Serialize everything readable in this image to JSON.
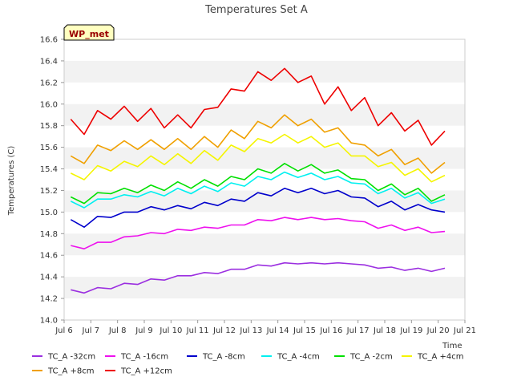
{
  "chart_data": {
    "type": "line",
    "title": "Temperatures Set A",
    "xlabel": "Time",
    "ylabel": "Temperatures (C)",
    "badge": "WP_met",
    "ylim": [
      14.0,
      16.6
    ],
    "yticks": [
      "14.0",
      "14.2",
      "14.4",
      "14.6",
      "14.8",
      "15.0",
      "15.2",
      "15.4",
      "15.6",
      "15.8",
      "16.0",
      "16.2",
      "16.4",
      "16.6"
    ],
    "xlim": [
      6,
      21
    ],
    "xticks": [
      {
        "x": 6,
        "label": "Jul 6"
      },
      {
        "x": 7,
        "label": "Jul 7"
      },
      {
        "x": 8,
        "label": "Jul 8"
      },
      {
        "x": 9,
        "label": "Jul 9"
      },
      {
        "x": 10,
        "label": "Jul 10"
      },
      {
        "x": 11,
        "label": "Jul 11"
      },
      {
        "x": 12,
        "label": "Jul 12"
      },
      {
        "x": 13,
        "label": "Jul 13"
      },
      {
        "x": 14,
        "label": "Jul 14"
      },
      {
        "x": 15,
        "label": "Jul 15"
      },
      {
        "x": 16,
        "label": "Jul 16"
      },
      {
        "x": 17,
        "label": "Jul 17"
      },
      {
        "x": 18,
        "label": "Jul 18"
      },
      {
        "x": 19,
        "label": "Jul 19"
      },
      {
        "x": 20,
        "label": "Jul 20"
      },
      {
        "x": 21,
        "label": "Jul 21"
      }
    ],
    "grid": "horizontal bands",
    "legend_position": "bottom",
    "x": [
      6.25,
      6.75,
      7.25,
      7.75,
      8.25,
      8.75,
      9.25,
      9.75,
      10.25,
      10.75,
      11.25,
      11.75,
      12.25,
      12.75,
      13.25,
      13.75,
      14.25,
      14.75,
      15.25,
      15.75,
      16.25,
      16.75,
      17.25,
      17.75,
      18.25,
      18.75,
      19.25,
      19.75,
      20.25
    ],
    "series": [
      {
        "name": "TC_A -32cm",
        "color": "#9b2fe0",
        "values": [
          14.28,
          14.25,
          14.3,
          14.29,
          14.34,
          14.33,
          14.38,
          14.37,
          14.41,
          14.41,
          14.44,
          14.43,
          14.47,
          14.47,
          14.51,
          14.5,
          14.53,
          14.52,
          14.53,
          14.52,
          14.53,
          14.52,
          14.51,
          14.48,
          14.49,
          14.46,
          14.48,
          14.45,
          14.48
        ]
      },
      {
        "name": "TC_A -16cm",
        "color": "#ee11ee",
        "values": [
          14.69,
          14.66,
          14.72,
          14.72,
          14.77,
          14.78,
          14.81,
          14.8,
          14.84,
          14.83,
          14.86,
          14.85,
          14.88,
          14.88,
          14.93,
          14.92,
          14.95,
          14.93,
          14.95,
          14.93,
          14.94,
          14.92,
          14.91,
          14.85,
          14.88,
          14.83,
          14.86,
          14.81,
          14.82
        ]
      },
      {
        "name": "TC_A -8cm",
        "color": "#0000cc",
        "values": [
          14.93,
          14.86,
          14.96,
          14.95,
          15.0,
          15.0,
          15.05,
          15.02,
          15.06,
          15.03,
          15.09,
          15.06,
          15.12,
          15.1,
          15.18,
          15.15,
          15.22,
          15.18,
          15.22,
          15.17,
          15.2,
          15.14,
          15.13,
          15.05,
          15.1,
          15.02,
          15.07,
          15.02,
          15.0
        ]
      },
      {
        "name": "TC_A -4cm",
        "color": "#00f0f0",
        "values": [
          15.1,
          15.04,
          15.12,
          15.12,
          15.16,
          15.14,
          15.19,
          15.15,
          15.22,
          15.17,
          15.24,
          15.19,
          15.27,
          15.24,
          15.33,
          15.3,
          15.37,
          15.32,
          15.36,
          15.3,
          15.33,
          15.27,
          15.26,
          15.17,
          15.22,
          15.13,
          15.18,
          15.08,
          15.12
        ]
      },
      {
        "name": "TC_A -2cm",
        "color": "#00e000",
        "values": [
          15.14,
          15.08,
          15.18,
          15.17,
          15.22,
          15.18,
          15.25,
          15.2,
          15.28,
          15.22,
          15.3,
          15.24,
          15.33,
          15.3,
          15.4,
          15.36,
          15.45,
          15.38,
          15.44,
          15.36,
          15.39,
          15.31,
          15.3,
          15.2,
          15.26,
          15.16,
          15.22,
          15.1,
          15.16
        ]
      },
      {
        "name": "TC_A +4cm",
        "color": "#f5f500",
        "values": [
          15.36,
          15.3,
          15.43,
          15.38,
          15.47,
          15.42,
          15.52,
          15.44,
          15.54,
          15.45,
          15.57,
          15.48,
          15.62,
          15.56,
          15.68,
          15.64,
          15.72,
          15.64,
          15.7,
          15.6,
          15.64,
          15.52,
          15.52,
          15.42,
          15.46,
          15.34,
          15.4,
          15.28,
          15.34
        ]
      },
      {
        "name": "TC_A +8cm",
        "color": "#f0a000",
        "values": [
          15.52,
          15.45,
          15.62,
          15.57,
          15.66,
          15.58,
          15.67,
          15.58,
          15.68,
          15.58,
          15.7,
          15.6,
          15.76,
          15.68,
          15.84,
          15.78,
          15.9,
          15.8,
          15.86,
          15.74,
          15.78,
          15.64,
          15.62,
          15.52,
          15.58,
          15.44,
          15.5,
          15.36,
          15.46
        ]
      },
      {
        "name": "TC_A +12cm",
        "color": "#ee0000",
        "values": [
          15.86,
          15.72,
          15.94,
          15.86,
          15.98,
          15.84,
          15.96,
          15.78,
          15.9,
          15.78,
          15.95,
          15.97,
          16.14,
          16.12,
          16.3,
          16.22,
          16.33,
          16.2,
          16.26,
          16.0,
          16.16,
          15.94,
          16.06,
          15.8,
          15.92,
          15.75,
          15.85,
          15.62,
          15.75
        ]
      }
    ]
  }
}
